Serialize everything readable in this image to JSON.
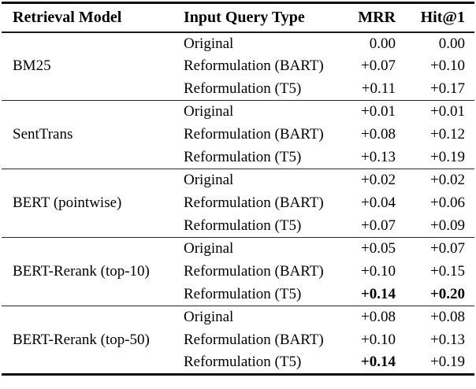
{
  "table": {
    "headers": {
      "retrieval_model": "Retrieval Model",
      "input_query_type": "Input Query Type",
      "mrr": "MRR",
      "hit_at_1": "Hit@1"
    },
    "groups": [
      {
        "model": "BM25",
        "rows": [
          {
            "query": "Original",
            "mrr": "0.00",
            "hit1": "0.00",
            "mrr_bold": false,
            "hit1_bold": false
          },
          {
            "query": "Reformulation (BART)",
            "mrr": "+0.07",
            "hit1": "+0.10",
            "mrr_bold": false,
            "hit1_bold": false
          },
          {
            "query": "Reformulation (T5)",
            "mrr": "+0.11",
            "hit1": "+0.17",
            "mrr_bold": false,
            "hit1_bold": false
          }
        ]
      },
      {
        "model": "SentTrans",
        "rows": [
          {
            "query": "Original",
            "mrr": "+0.01",
            "hit1": "+0.01",
            "mrr_bold": false,
            "hit1_bold": false
          },
          {
            "query": "Reformulation (BART)",
            "mrr": "+0.08",
            "hit1": "+0.12",
            "mrr_bold": false,
            "hit1_bold": false
          },
          {
            "query": "Reformulation (T5)",
            "mrr": "+0.13",
            "hit1": "+0.19",
            "mrr_bold": false,
            "hit1_bold": false
          }
        ]
      },
      {
        "model": "BERT (pointwise)",
        "rows": [
          {
            "query": "Original",
            "mrr": "+0.02",
            "hit1": "+0.02",
            "mrr_bold": false,
            "hit1_bold": false
          },
          {
            "query": "Reformulation (BART)",
            "mrr": "+0.04",
            "hit1": "+0.06",
            "mrr_bold": false,
            "hit1_bold": false
          },
          {
            "query": "Reformulation (T5)",
            "mrr": "+0.07",
            "hit1": "+0.09",
            "mrr_bold": false,
            "hit1_bold": false
          }
        ]
      },
      {
        "model": "BERT-Rerank (top-10)",
        "rows": [
          {
            "query": "Original",
            "mrr": "+0.05",
            "hit1": "+0.07",
            "mrr_bold": false,
            "hit1_bold": false
          },
          {
            "query": "Reformulation (BART)",
            "mrr": "+0.10",
            "hit1": "+0.15",
            "mrr_bold": false,
            "hit1_bold": false
          },
          {
            "query": "Reformulation (T5)",
            "mrr": "+0.14",
            "hit1": "+0.20",
            "mrr_bold": true,
            "hit1_bold": true
          }
        ]
      },
      {
        "model": "BERT-Rerank (top-50)",
        "rows": [
          {
            "query": "Original",
            "mrr": "+0.08",
            "hit1": "+0.08",
            "mrr_bold": false,
            "hit1_bold": false
          },
          {
            "query": "Reformulation (BART)",
            "mrr": "+0.10",
            "hit1": "+0.13",
            "mrr_bold": false,
            "hit1_bold": false
          },
          {
            "query": "Reformulation (T5)",
            "mrr": "+0.14",
            "hit1": "+0.19",
            "mrr_bold": true,
            "hit1_bold": false
          }
        ]
      }
    ]
  },
  "colors": {
    "text": "#000000",
    "background": "#ffffff",
    "rule": "#1a1a1a"
  }
}
